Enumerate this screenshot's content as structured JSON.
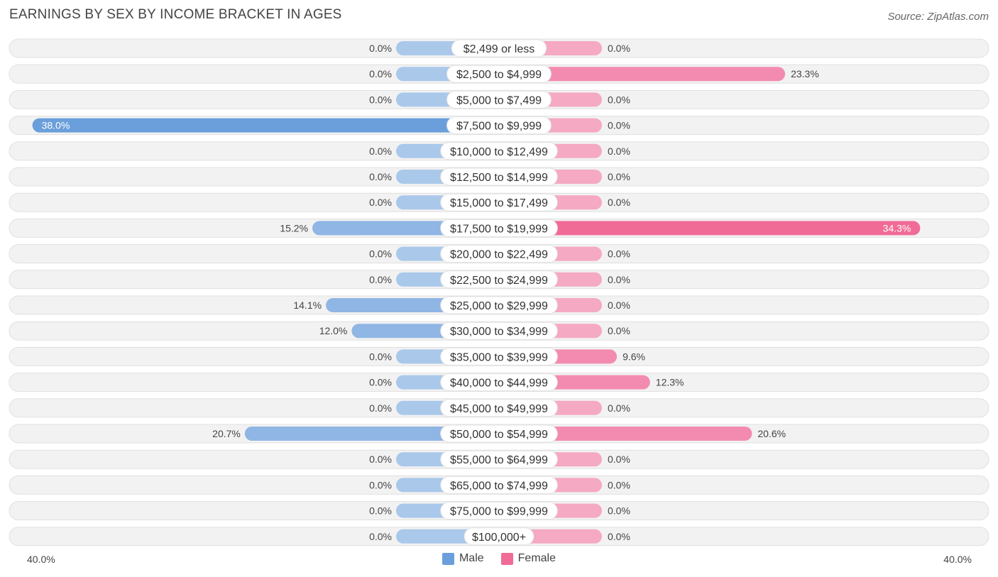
{
  "title": "EARNINGS BY SEX BY INCOME BRACKET IN AGES",
  "source": "Source: ZipAtlas.com",
  "colors": {
    "male_strong": "#6a9fdb",
    "male_light": "#aac8ea",
    "female_strong": "#f06b96",
    "female_light": "#f5a9c2",
    "row_bg": "#f2f2f2",
    "row_border": "#e0e0e0"
  },
  "legend": {
    "male": "Male",
    "female": "Female"
  },
  "axis": {
    "left_label": "40.0%",
    "right_label": "40.0%"
  },
  "chart_data": {
    "type": "bar",
    "orientation": "diverging-horizontal",
    "title": "EARNINGS BY SEX BY INCOME BRACKET IN AGES",
    "xlim": [
      -40,
      40
    ],
    "categories": [
      "$2,499 or less",
      "$2,500 to $4,999",
      "$5,000 to $7,499",
      "$7,500 to $9,999",
      "$10,000 to $12,499",
      "$12,500 to $14,999",
      "$15,000 to $17,499",
      "$17,500 to $19,999",
      "$20,000 to $22,499",
      "$22,500 to $24,999",
      "$25,000 to $29,999",
      "$30,000 to $34,999",
      "$35,000 to $39,999",
      "$40,000 to $44,999",
      "$45,000 to $49,999",
      "$50,000 to $54,999",
      "$55,000 to $64,999",
      "$65,000 to $74,999",
      "$75,000 to $99,999",
      "$100,000+"
    ],
    "series": [
      {
        "name": "Male",
        "values": [
          0.0,
          0.0,
          0.0,
          38.0,
          0.0,
          0.0,
          0.0,
          15.2,
          0.0,
          0.0,
          14.1,
          12.0,
          0.0,
          0.0,
          0.0,
          20.7,
          0.0,
          0.0,
          0.0,
          0.0
        ],
        "labels": [
          "0.0%",
          "0.0%",
          "0.0%",
          "38.0%",
          "0.0%",
          "0.0%",
          "0.0%",
          "15.2%",
          "0.0%",
          "0.0%",
          "14.1%",
          "12.0%",
          "0.0%",
          "0.0%",
          "0.0%",
          "20.7%",
          "0.0%",
          "0.0%",
          "0.0%",
          "0.0%"
        ]
      },
      {
        "name": "Female",
        "values": [
          0.0,
          23.3,
          0.0,
          0.0,
          0.0,
          0.0,
          0.0,
          34.3,
          0.0,
          0.0,
          0.0,
          0.0,
          9.6,
          12.3,
          0.0,
          20.6,
          0.0,
          0.0,
          0.0,
          0.0
        ],
        "labels": [
          "0.0%",
          "23.3%",
          "0.0%",
          "0.0%",
          "0.0%",
          "0.0%",
          "0.0%",
          "34.3%",
          "0.0%",
          "0.0%",
          "0.0%",
          "0.0%",
          "9.6%",
          "12.3%",
          "0.0%",
          "20.6%",
          "0.0%",
          "0.0%",
          "0.0%",
          "0.0%"
        ]
      }
    ]
  }
}
